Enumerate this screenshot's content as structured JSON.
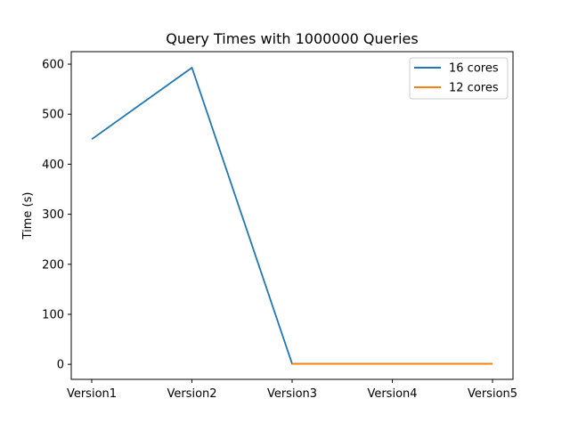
{
  "chart_data": {
    "type": "line",
    "title": "Query Times with 1000000 Queries",
    "xlabel": "",
    "ylabel": "Time (s)",
    "categories": [
      "Version1",
      "Version2",
      "Version3",
      "Version4",
      "Version5"
    ],
    "ylim": [
      -30,
      625
    ],
    "yticks": [
      0,
      100,
      200,
      300,
      400,
      500,
      600
    ],
    "grid": false,
    "legend_position": "top-right",
    "series": [
      {
        "name": "16 cores",
        "color": "#1f77b4",
        "values": [
          450,
          593,
          1,
          1,
          1
        ]
      },
      {
        "name": "12 cores",
        "color": "#ff7f0e",
        "values": [
          null,
          null,
          1,
          1,
          1
        ]
      }
    ]
  }
}
